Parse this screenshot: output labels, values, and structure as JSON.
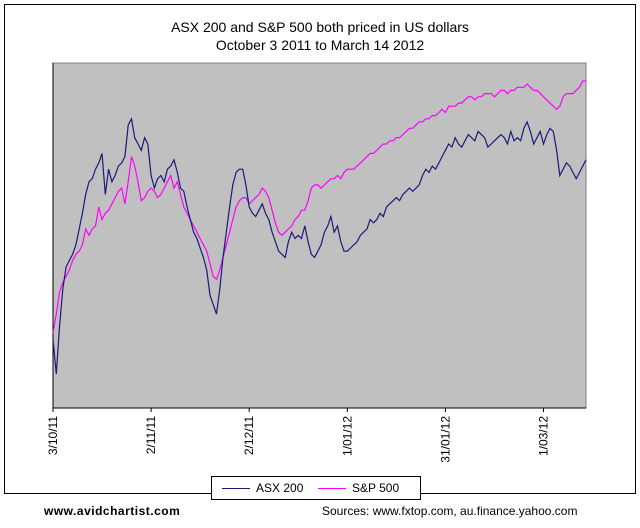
{
  "chart_data": {
    "type": "line",
    "title": "ASX 200 and S&P 500 both priced in US dollars",
    "subtitle": "October 3 2011 to March 14 2012",
    "xlabel": "",
    "ylabel": "",
    "x_tick_labels": [
      "3/10/11",
      "2/11/11",
      "2/12/11",
      "1/01/12",
      "31/01/12",
      "1/03/12"
    ],
    "x_tick_days": [
      0,
      30,
      60,
      90,
      120,
      150
    ],
    "x_range": [
      0,
      163
    ],
    "y_range": [
      0,
      100
    ],
    "y_tick_labels": [],
    "grid": false,
    "legend_position": "bottom",
    "series": [
      {
        "name": "ASX 200",
        "color": "#1a1a7a",
        "x": [
          0,
          1,
          2,
          3,
          4,
          5,
          6,
          7,
          8,
          9,
          10,
          11,
          12,
          13,
          14,
          15,
          16,
          17,
          18,
          19,
          20,
          21,
          22,
          23,
          24,
          25,
          26,
          27,
          28,
          29,
          30,
          31,
          32,
          33,
          34,
          35,
          36,
          37,
          38,
          39,
          40,
          41,
          42,
          43,
          44,
          45,
          46,
          47,
          48,
          49,
          50,
          51,
          52,
          53,
          54,
          55,
          56,
          57,
          58,
          59,
          60,
          61,
          62,
          63,
          64,
          65,
          66,
          67,
          68,
          69,
          70,
          71,
          72,
          73,
          74,
          75,
          76,
          77,
          78,
          79,
          80,
          81,
          82,
          83,
          84,
          85,
          86,
          87,
          88,
          89,
          90,
          91,
          92,
          93,
          94,
          95,
          96,
          97,
          98,
          99,
          100,
          101,
          102,
          103,
          104,
          105,
          106,
          107,
          108,
          109,
          110,
          111,
          112,
          113,
          114,
          115,
          116,
          117,
          118,
          119,
          120,
          121,
          122,
          123,
          124,
          125,
          126,
          127,
          128,
          129,
          130,
          131,
          132,
          133,
          134,
          135,
          136,
          137,
          138,
          139,
          140,
          141,
          142,
          143,
          144,
          145,
          146,
          147,
          148,
          149,
          150,
          151,
          152,
          153,
          154,
          155,
          156,
          157,
          158,
          159,
          160,
          161,
          162,
          163
        ],
        "values": [
          18,
          7,
          22,
          34,
          41,
          43,
          45,
          48,
          53,
          58,
          64,
          68,
          69,
          72,
          74,
          77,
          64,
          72,
          68,
          70,
          73,
          74,
          76,
          86,
          88,
          82,
          80,
          78,
          82,
          80,
          70,
          66,
          69,
          70,
          68,
          72,
          73,
          75,
          71,
          66,
          65,
          60,
          56,
          52,
          50,
          47,
          44,
          40,
          32,
          29,
          26,
          34,
          44,
          52,
          60,
          67,
          71,
          72,
          72,
          67,
          60,
          58,
          57,
          59,
          61,
          58,
          56,
          52,
          49,
          46,
          45,
          44,
          49,
          52,
          50,
          51,
          50,
          54,
          49,
          45,
          44,
          46,
          48,
          52,
          54,
          57,
          52,
          54,
          49,
          46,
          46,
          47,
          48,
          49,
          51,
          52,
          53,
          56,
          55,
          56,
          58,
          57,
          60,
          61,
          62,
          63,
          62,
          64,
          65,
          66,
          65,
          66,
          67,
          70,
          72,
          71,
          73,
          72,
          74,
          76,
          78,
          80,
          79,
          82,
          80,
          79,
          81,
          83,
          82,
          81,
          84,
          83,
          82,
          79,
          80,
          81,
          82,
          83,
          82,
          80,
          84,
          81,
          82,
          81,
          85,
          87,
          84,
          80,
          82,
          84,
          80,
          83,
          85,
          84,
          78,
          70,
          72,
          74,
          73,
          71,
          69,
          71,
          73,
          75
        ]
      },
      {
        "name": "S&P 500",
        "color": "#ff00ff",
        "x": [
          0,
          1,
          2,
          3,
          4,
          5,
          6,
          7,
          8,
          9,
          10,
          11,
          12,
          13,
          14,
          15,
          16,
          17,
          18,
          19,
          20,
          21,
          22,
          23,
          24,
          25,
          26,
          27,
          28,
          29,
          30,
          31,
          32,
          33,
          34,
          35,
          36,
          37,
          38,
          39,
          40,
          41,
          42,
          43,
          44,
          45,
          46,
          47,
          48,
          49,
          50,
          51,
          52,
          53,
          54,
          55,
          56,
          57,
          58,
          59,
          60,
          61,
          62,
          63,
          64,
          65,
          66,
          67,
          68,
          69,
          70,
          71,
          72,
          73,
          74,
          75,
          76,
          77,
          78,
          79,
          80,
          81,
          82,
          83,
          84,
          85,
          86,
          87,
          88,
          89,
          90,
          91,
          92,
          93,
          94,
          95,
          96,
          97,
          98,
          99,
          100,
          101,
          102,
          103,
          104,
          105,
          106,
          107,
          108,
          109,
          110,
          111,
          112,
          113,
          114,
          115,
          116,
          117,
          118,
          119,
          120,
          121,
          122,
          123,
          124,
          125,
          126,
          127,
          128,
          129,
          130,
          131,
          132,
          133,
          134,
          135,
          136,
          137,
          138,
          139,
          140,
          141,
          142,
          143,
          144,
          145,
          146,
          147,
          148,
          149,
          150,
          151,
          152,
          153,
          154,
          155,
          156,
          157,
          158,
          159,
          160,
          161,
          162,
          163
        ],
        "values": [
          20,
          26,
          33,
          36,
          38,
          40,
          43,
          45,
          46,
          48,
          53,
          51,
          53,
          54,
          60,
          56,
          58,
          59,
          61,
          63,
          65,
          66,
          61,
          68,
          76,
          73,
          68,
          62,
          63,
          65,
          66,
          65,
          63,
          64,
          66,
          68,
          70,
          66,
          68,
          64,
          60,
          58,
          56,
          54,
          52,
          50,
          48,
          46,
          42,
          38,
          37,
          40,
          44,
          48,
          52,
          56,
          60,
          62,
          63,
          63,
          61,
          62,
          63,
          64,
          66,
          65,
          63,
          59,
          55,
          52,
          51,
          52,
          53,
          54,
          56,
          57,
          59,
          59,
          62,
          66,
          67,
          67,
          66,
          67,
          68,
          69,
          69,
          70,
          69,
          71,
          72,
          72,
          72,
          73,
          74,
          75,
          76,
          77,
          77,
          78,
          79,
          80,
          80,
          81,
          81,
          82,
          82,
          83,
          84,
          85,
          85,
          86,
          87,
          87,
          88,
          88,
          89,
          89,
          90,
          91,
          90,
          92,
          92,
          92,
          93,
          93,
          94,
          95,
          95,
          94,
          95,
          95,
          96,
          96,
          96,
          95,
          96,
          97,
          97,
          96,
          97,
          97,
          98,
          98,
          98,
          99,
          98,
          97,
          97,
          96,
          95,
          94,
          93,
          92,
          91,
          92,
          95,
          96,
          96,
          96,
          97,
          98,
          100,
          100
        ]
      }
    ]
  },
  "legend": {
    "items": [
      {
        "label": "ASX 200"
      },
      {
        "label": "S&P 500"
      }
    ]
  },
  "footer": {
    "website": "www.avidchartist.com",
    "sources": "Sources: www.fxtop.com,  au.finance.yahoo.com"
  },
  "colors": {
    "plot_background": "#c0c0c0",
    "asx": "#1a1a7a",
    "sp": "#ff00ff"
  }
}
